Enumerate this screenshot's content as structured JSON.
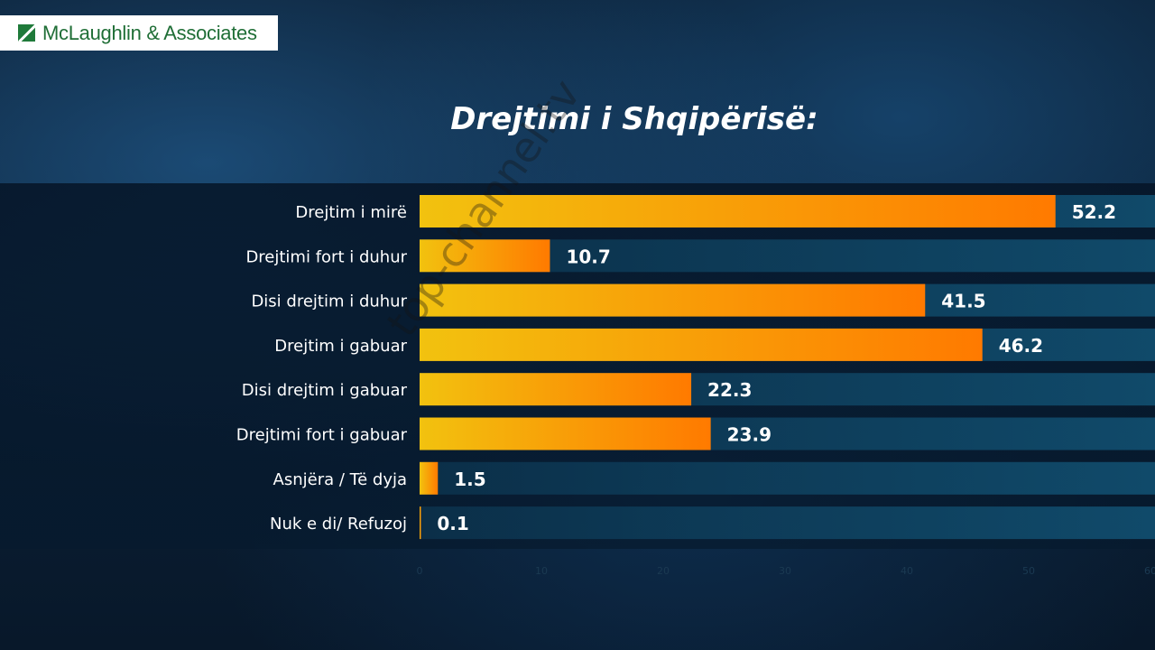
{
  "logo": {
    "text": "McLaughlin & Associates"
  },
  "watermark": "top-channel.tv",
  "chart_data": {
    "type": "bar",
    "orientation": "horizontal",
    "title": "Drejtimi i Shqipërisë:",
    "categories": [
      "Drejtim i mirë",
      "Drejtimi fort i duhur",
      "Disi drejtim i duhur",
      "Drejtim i gabuar",
      "Disi drejtim i gabuar",
      "Drejtimi fort i gabuar",
      "Asnjëra / Të dyja",
      "Nuk e di/ Refuzoj"
    ],
    "values": [
      52.2,
      10.7,
      41.5,
      46.2,
      22.3,
      23.9,
      1.5,
      0.1
    ],
    "xlim": [
      0,
      60
    ],
    "xticks": [
      0,
      10,
      20,
      30,
      40,
      50,
      60
    ],
    "data_labels": true,
    "colors": {
      "bar_start": "#f2c20f",
      "bar_end": "#ff7a00",
      "track": "#0f4868",
      "label": "#ffffff"
    }
  }
}
